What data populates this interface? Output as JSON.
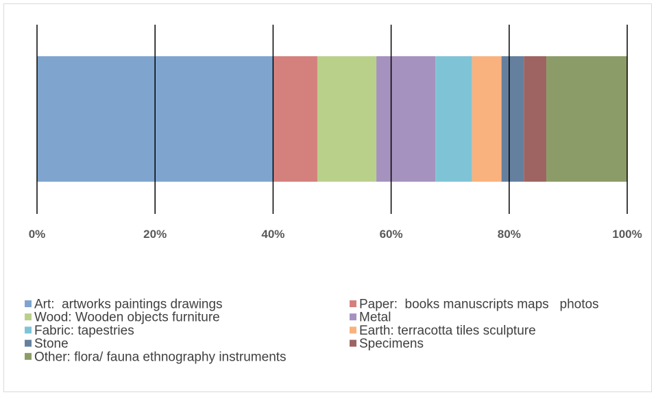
{
  "chart_data": {
    "type": "bar",
    "orientation": "horizontal",
    "stacking": "percent",
    "title": "",
    "xlabel": "",
    "ylabel": "",
    "xlim": [
      0,
      100
    ],
    "grid": true,
    "legend_position": "bottom",
    "tick_labels": [
      "0%",
      "20%",
      "40%",
      "60%",
      "80%",
      "100%"
    ],
    "tick_values": [
      0,
      20,
      40,
      60,
      80,
      100
    ],
    "series": [
      {
        "name": "Art:  artworks paintings drawings",
        "value": 40.0,
        "color": "#7fa5cf"
      },
      {
        "name": "Paper:  books manuscripts maps   photos",
        "value": 7.5,
        "color": "#d4817e"
      },
      {
        "name": "Wood: Wooden objects furniture",
        "value": 10.0,
        "color": "#b9d08b"
      },
      {
        "name": "Metal",
        "value": 10.0,
        "color": "#a592bf"
      },
      {
        "name": "Fabric: tapestries",
        "value": 6.2,
        "color": "#7fc4d6"
      },
      {
        "name": "Earth: terracotta tiles sculpture",
        "value": 5.0,
        "color": "#f9b27d"
      },
      {
        "name": "Stone",
        "value": 3.8,
        "color": "#64809e"
      },
      {
        "name": "Specimens",
        "value": 3.8,
        "color": "#9e6462"
      },
      {
        "name": "Other: flora/ fauna ethnography instruments",
        "value": 13.7,
        "color": "#8c9c68"
      }
    ]
  }
}
